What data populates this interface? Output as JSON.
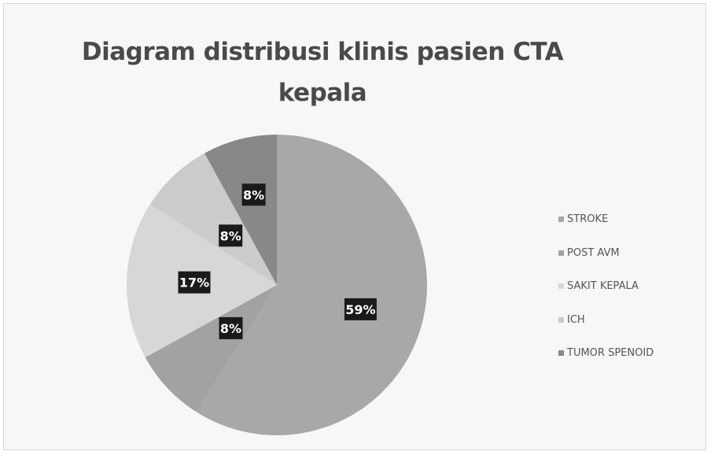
{
  "chart_data": {
    "type": "pie",
    "title": "Diagram distribusi klinis pasien CTA kepala",
    "title_lines": [
      "Diagram distribusi klinis pasien CTA",
      "kepala"
    ],
    "legend_position": "right",
    "slices": [
      {
        "name": "STROKE",
        "value": 59,
        "label": "59%",
        "color": "#a8a8a8"
      },
      {
        "name": "POST AVM",
        "value": 8,
        "label": "8%",
        "color": "#a2a2a2"
      },
      {
        "name": "SAKIT KEPALA",
        "value": 17,
        "label": "17%",
        "color": "#d7d7d7"
      },
      {
        "name": "ICH",
        "value": 8,
        "label": "8%",
        "color": "#cbcbcb"
      },
      {
        "name": "TUMOR SPENOID",
        "value": 8,
        "label": "8%",
        "color": "#888888"
      }
    ]
  }
}
